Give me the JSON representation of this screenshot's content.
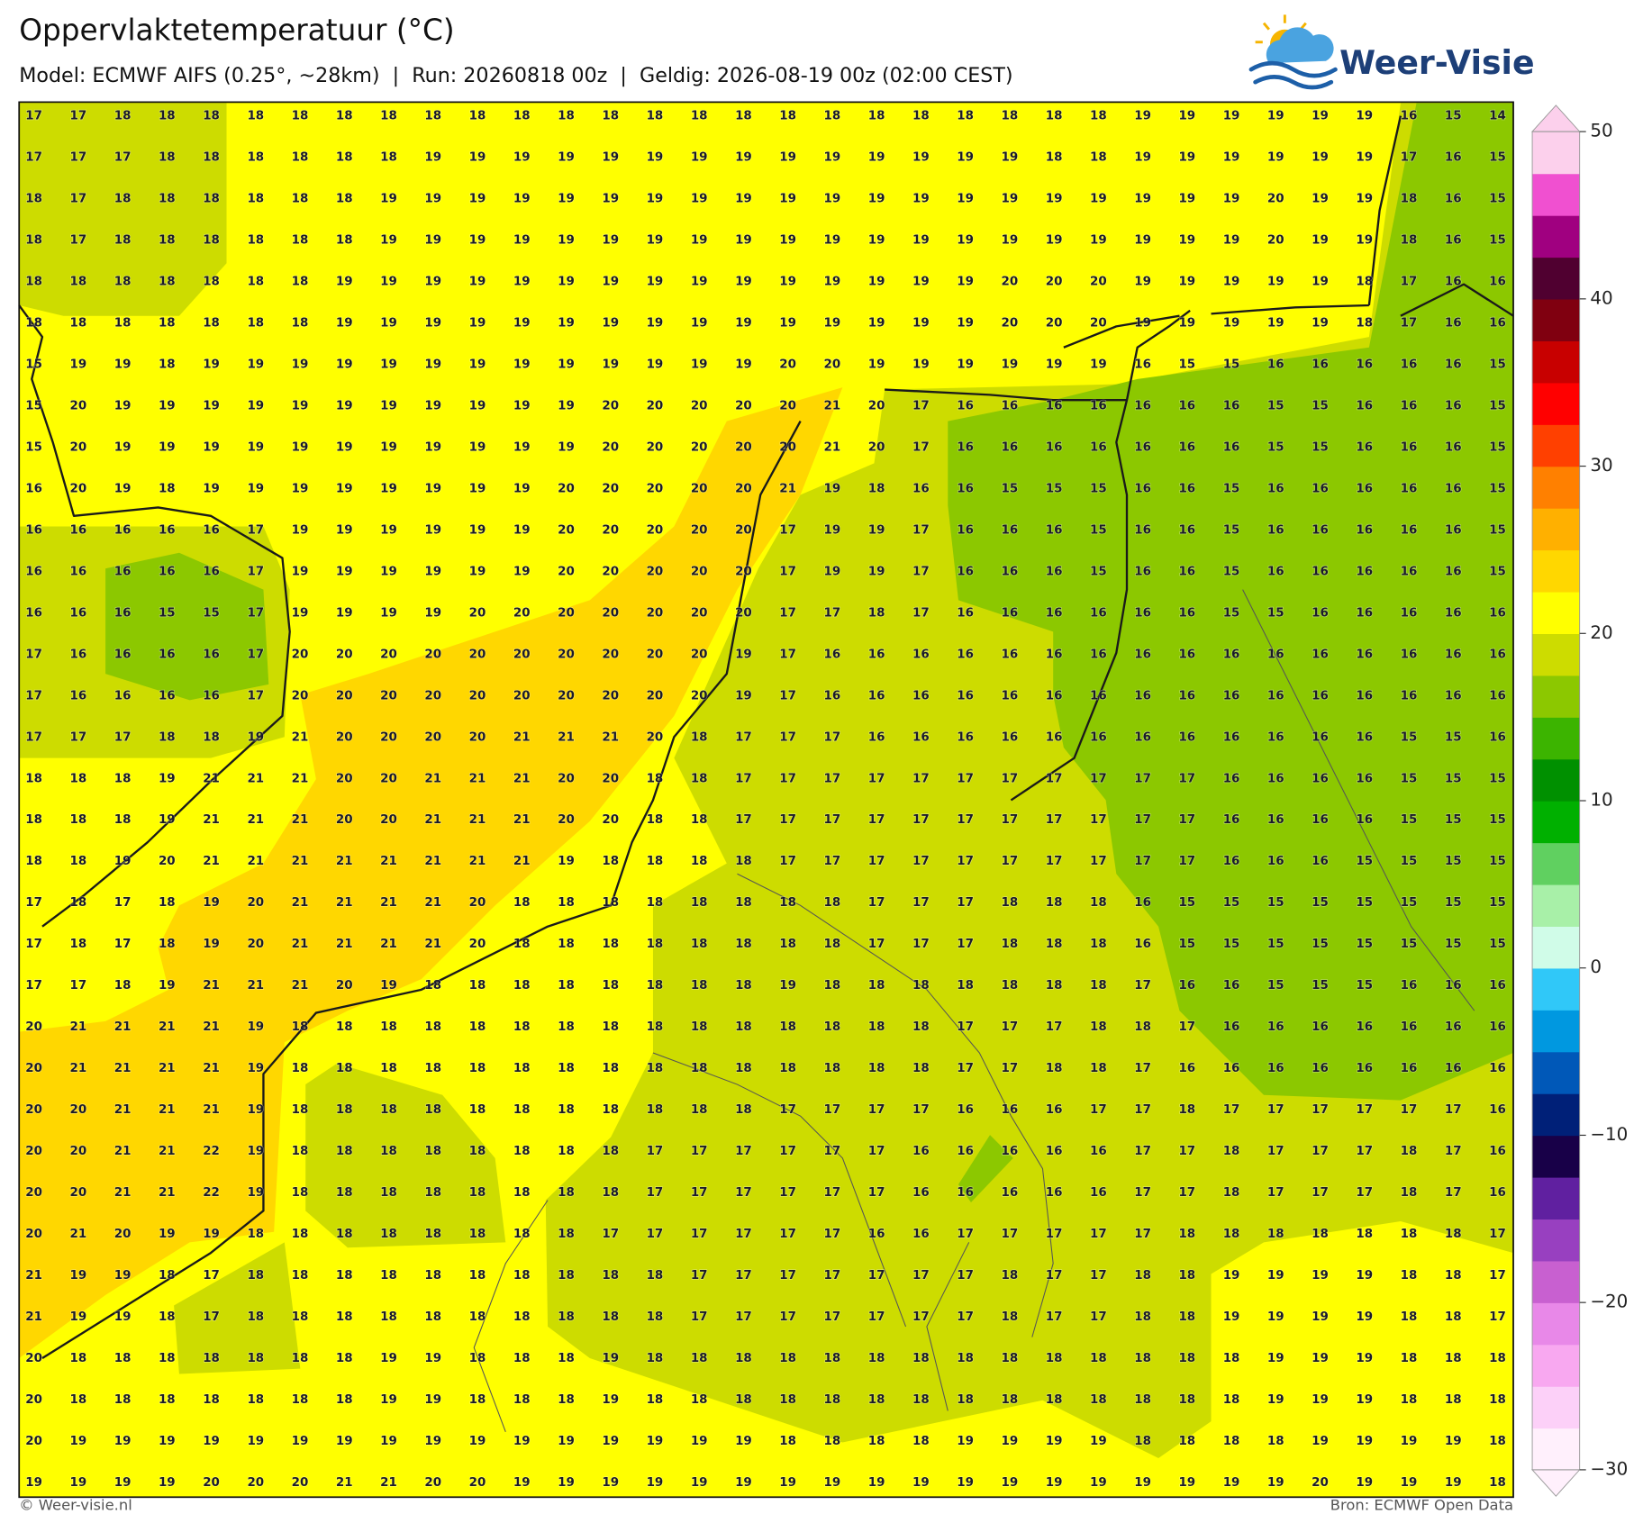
{
  "header": {
    "title": "Oppervlaktetemperatuur (°C)",
    "subtitle": "Model: ECMWF AIFS (0.25°, ~28km)  |  Run: 20260818 00z  |  Geldig: 2026-08-19 00z (02:00 CEST)"
  },
  "logo": {
    "text": "Weer-Visie"
  },
  "grid": {
    "rows": [
      [
        17,
        17,
        18,
        18,
        18,
        18,
        18,
        18,
        18,
        18,
        18,
        18,
        18,
        18,
        18,
        18,
        18,
        18,
        18,
        18,
        18,
        18,
        18,
        18,
        18,
        19,
        19,
        19,
        19,
        19,
        19,
        16,
        15,
        14
      ],
      [
        17,
        17,
        17,
        18,
        18,
        18,
        18,
        18,
        18,
        19,
        19,
        19,
        19,
        19,
        19,
        19,
        19,
        19,
        19,
        19,
        19,
        19,
        19,
        18,
        18,
        19,
        19,
        19,
        19,
        19,
        19,
        17,
        16,
        15
      ],
      [
        18,
        17,
        18,
        18,
        18,
        18,
        18,
        18,
        19,
        19,
        19,
        19,
        19,
        19,
        19,
        19,
        19,
        19,
        19,
        19,
        19,
        19,
        19,
        19,
        19,
        19,
        19,
        19,
        20,
        19,
        19,
        18,
        16,
        15
      ],
      [
        18,
        17,
        18,
        18,
        18,
        18,
        18,
        18,
        19,
        19,
        19,
        19,
        19,
        19,
        19,
        19,
        19,
        19,
        19,
        19,
        19,
        19,
        19,
        19,
        19,
        19,
        19,
        19,
        20,
        19,
        19,
        18,
        16,
        15
      ],
      [
        18,
        18,
        18,
        18,
        18,
        18,
        18,
        19,
        19,
        19,
        19,
        19,
        19,
        19,
        19,
        19,
        19,
        19,
        19,
        19,
        19,
        19,
        20,
        20,
        20,
        19,
        19,
        19,
        19,
        19,
        18,
        17,
        16,
        16
      ],
      [
        18,
        18,
        18,
        18,
        18,
        18,
        18,
        19,
        19,
        19,
        19,
        19,
        19,
        19,
        19,
        19,
        19,
        19,
        19,
        19,
        19,
        19,
        20,
        20,
        20,
        19,
        19,
        19,
        19,
        19,
        18,
        17,
        16,
        16
      ],
      [
        15,
        19,
        19,
        18,
        19,
        19,
        19,
        19,
        19,
        19,
        19,
        19,
        19,
        19,
        19,
        19,
        19,
        20,
        20,
        19,
        19,
        19,
        19,
        19,
        19,
        16,
        15,
        15,
        16,
        16,
        16,
        16,
        16,
        15
      ],
      [
        15,
        20,
        19,
        19,
        19,
        19,
        19,
        19,
        19,
        19,
        19,
        19,
        19,
        20,
        20,
        20,
        20,
        20,
        21,
        20,
        17,
        16,
        16,
        16,
        16,
        16,
        16,
        16,
        15,
        15,
        16,
        16,
        16,
        15
      ],
      [
        15,
        20,
        19,
        19,
        19,
        19,
        19,
        19,
        19,
        19,
        19,
        19,
        19,
        20,
        20,
        20,
        20,
        20,
        21,
        20,
        17,
        16,
        16,
        16,
        16,
        16,
        16,
        16,
        15,
        15,
        16,
        16,
        16,
        15
      ],
      [
        16,
        20,
        19,
        18,
        19,
        19,
        19,
        19,
        19,
        19,
        19,
        19,
        20,
        20,
        20,
        20,
        20,
        21,
        19,
        18,
        16,
        16,
        15,
        15,
        15,
        16,
        16,
        15,
        16,
        16,
        16,
        16,
        16,
        15
      ],
      [
        16,
        16,
        16,
        16,
        16,
        17,
        19,
        19,
        19,
        19,
        19,
        19,
        20,
        20,
        20,
        20,
        20,
        17,
        19,
        19,
        17,
        16,
        16,
        16,
        15,
        16,
        16,
        15,
        16,
        16,
        16,
        16,
        16,
        15
      ],
      [
        16,
        16,
        16,
        16,
        16,
        17,
        19,
        19,
        19,
        19,
        19,
        19,
        20,
        20,
        20,
        20,
        20,
        17,
        19,
        19,
        17,
        16,
        16,
        16,
        15,
        16,
        16,
        15,
        16,
        16,
        16,
        16,
        16,
        15
      ],
      [
        16,
        16,
        16,
        15,
        15,
        17,
        19,
        19,
        19,
        19,
        20,
        20,
        20,
        20,
        20,
        20,
        20,
        17,
        17,
        18,
        17,
        16,
        16,
        16,
        16,
        16,
        16,
        15,
        15,
        16,
        16,
        16,
        16,
        16
      ],
      [
        17,
        16,
        16,
        16,
        16,
        17,
        20,
        20,
        20,
        20,
        20,
        20,
        20,
        20,
        20,
        20,
        19,
        17,
        16,
        16,
        16,
        16,
        16,
        16,
        16,
        16,
        16,
        16,
        16,
        16,
        16,
        16,
        16,
        16
      ],
      [
        17,
        16,
        16,
        16,
        16,
        17,
        20,
        20,
        20,
        20,
        20,
        20,
        20,
        20,
        20,
        20,
        19,
        17,
        16,
        16,
        16,
        16,
        16,
        16,
        16,
        16,
        16,
        16,
        16,
        16,
        16,
        16,
        16,
        16
      ],
      [
        17,
        17,
        17,
        18,
        18,
        19,
        21,
        20,
        20,
        20,
        20,
        21,
        21,
        21,
        20,
        18,
        17,
        17,
        17,
        16,
        16,
        16,
        16,
        16,
        16,
        16,
        16,
        16,
        16,
        16,
        16,
        15,
        15,
        16
      ],
      [
        18,
        18,
        18,
        19,
        21,
        21,
        21,
        20,
        20,
        21,
        21,
        21,
        20,
        20,
        18,
        18,
        17,
        17,
        17,
        17,
        17,
        17,
        17,
        17,
        17,
        17,
        17,
        16,
        16,
        16,
        16,
        15,
        15,
        15
      ],
      [
        18,
        18,
        18,
        19,
        21,
        21,
        21,
        20,
        20,
        21,
        21,
        21,
        20,
        20,
        18,
        18,
        17,
        17,
        17,
        17,
        17,
        17,
        17,
        17,
        17,
        17,
        17,
        16,
        16,
        16,
        16,
        15,
        15,
        15
      ],
      [
        18,
        18,
        19,
        20,
        21,
        21,
        21,
        21,
        21,
        21,
        21,
        21,
        19,
        18,
        18,
        18,
        18,
        17,
        17,
        17,
        17,
        17,
        17,
        17,
        17,
        17,
        17,
        16,
        16,
        16,
        15,
        15,
        15,
        15
      ],
      [
        17,
        18,
        17,
        18,
        19,
        20,
        21,
        21,
        21,
        21,
        20,
        18,
        18,
        18,
        18,
        18,
        18,
        18,
        18,
        17,
        17,
        17,
        18,
        18,
        18,
        16,
        15,
        15,
        15,
        15,
        15,
        15,
        15,
        15
      ],
      [
        17,
        18,
        17,
        18,
        19,
        20,
        21,
        21,
        21,
        21,
        20,
        18,
        18,
        18,
        18,
        18,
        18,
        18,
        18,
        17,
        17,
        17,
        18,
        18,
        18,
        16,
        15,
        15,
        15,
        15,
        15,
        15,
        15,
        15
      ],
      [
        17,
        17,
        18,
        19,
        21,
        21,
        21,
        20,
        19,
        18,
        18,
        18,
        18,
        18,
        18,
        18,
        18,
        19,
        18,
        18,
        18,
        18,
        18,
        18,
        18,
        17,
        16,
        16,
        15,
        15,
        15,
        16,
        16,
        16
      ],
      [
        20,
        21,
        21,
        21,
        21,
        19,
        18,
        18,
        18,
        18,
        18,
        18,
        18,
        18,
        18,
        18,
        18,
        18,
        18,
        18,
        18,
        17,
        17,
        17,
        18,
        18,
        17,
        16,
        16,
        16,
        16,
        16,
        16,
        16
      ],
      [
        20,
        21,
        21,
        21,
        21,
        19,
        18,
        18,
        18,
        18,
        18,
        18,
        18,
        18,
        18,
        18,
        18,
        18,
        18,
        18,
        18,
        17,
        17,
        18,
        18,
        17,
        16,
        16,
        16,
        16,
        16,
        16,
        16,
        16
      ],
      [
        20,
        20,
        21,
        21,
        21,
        19,
        18,
        18,
        18,
        18,
        18,
        18,
        18,
        18,
        18,
        18,
        18,
        17,
        17,
        17,
        17,
        16,
        16,
        16,
        17,
        17,
        18,
        17,
        17,
        17,
        17,
        17,
        17,
        16
      ],
      [
        20,
        20,
        21,
        21,
        22,
        19,
        18,
        18,
        18,
        18,
        18,
        18,
        18,
        18,
        17,
        17,
        17,
        17,
        17,
        17,
        16,
        16,
        16,
        16,
        16,
        17,
        17,
        18,
        17,
        17,
        17,
        18,
        17,
        16
      ],
      [
        20,
        20,
        21,
        21,
        22,
        19,
        18,
        18,
        18,
        18,
        18,
        18,
        18,
        18,
        17,
        17,
        17,
        17,
        17,
        17,
        16,
        16,
        16,
        16,
        16,
        17,
        17,
        18,
        17,
        17,
        17,
        18,
        17,
        16
      ],
      [
        20,
        21,
        20,
        19,
        19,
        18,
        18,
        18,
        18,
        18,
        18,
        18,
        18,
        17,
        17,
        17,
        17,
        17,
        17,
        16,
        16,
        17,
        17,
        17,
        17,
        17,
        18,
        18,
        18,
        18,
        18,
        18,
        18,
        17
      ],
      [
        21,
        19,
        19,
        18,
        17,
        18,
        18,
        18,
        18,
        18,
        18,
        18,
        18,
        18,
        18,
        17,
        17,
        17,
        17,
        17,
        17,
        17,
        18,
        17,
        17,
        18,
        18,
        19,
        19,
        19,
        19,
        18,
        18,
        17
      ],
      [
        21,
        19,
        19,
        18,
        17,
        18,
        18,
        18,
        18,
        18,
        18,
        18,
        18,
        18,
        18,
        17,
        17,
        17,
        17,
        17,
        17,
        17,
        18,
        17,
        17,
        18,
        18,
        19,
        19,
        19,
        19,
        18,
        18,
        17
      ],
      [
        20,
        18,
        18,
        18,
        18,
        18,
        18,
        18,
        19,
        19,
        18,
        18,
        18,
        19,
        18,
        18,
        18,
        18,
        18,
        18,
        18,
        18,
        18,
        18,
        18,
        18,
        18,
        18,
        19,
        19,
        19,
        18,
        18,
        18
      ],
      [
        20,
        18,
        18,
        18,
        18,
        18,
        18,
        18,
        19,
        19,
        18,
        18,
        18,
        19,
        18,
        18,
        18,
        18,
        18,
        18,
        18,
        18,
        18,
        18,
        18,
        18,
        18,
        18,
        19,
        19,
        19,
        18,
        18,
        18
      ],
      [
        20,
        19,
        19,
        19,
        19,
        19,
        19,
        19,
        19,
        19,
        19,
        19,
        19,
        19,
        19,
        19,
        19,
        18,
        18,
        18,
        18,
        19,
        19,
        19,
        19,
        18,
        18,
        18,
        18,
        19,
        19,
        19,
        19,
        18
      ],
      [
        19,
        19,
        19,
        19,
        20,
        20,
        20,
        21,
        21,
        20,
        20,
        19,
        19,
        19,
        19,
        19,
        19,
        19,
        19,
        19,
        19,
        19,
        19,
        19,
        19,
        19,
        19,
        19,
        19,
        20,
        19,
        19,
        19,
        18
      ]
    ]
  },
  "colorbar": {
    "lim": [
      -30,
      50
    ],
    "ticks": [
      50,
      40,
      30,
      20,
      10,
      0,
      {
        "value": -10,
        "label": "−10"
      },
      {
        "value": -20,
        "label": "−20"
      },
      {
        "value": -30,
        "label": "−30"
      }
    ],
    "colors": [
      "#fff0fc",
      "#fcd0f8",
      "#f8a8f0",
      "#e888e8",
      "#c860d0",
      "#9840c0",
      "#6020a0",
      "#180048",
      "#002078",
      "#0058b8",
      "#0098e0",
      "#30c8f8",
      "#d0fce8",
      "#a8f0a8",
      "#60d060",
      "#00b000",
      "#009000",
      "#3cb400",
      "#8cc800",
      "#cddc00",
      "#ffff00",
      "#ffd700",
      "#ffb000",
      "#ff8000",
      "#ff4000",
      "#ff0000",
      "#c80000",
      "#800010",
      "#500030",
      "#a00080",
      "#f050d0",
      "#fcd0ec"
    ]
  },
  "footer": {
    "left": "© Weer-visie.nl",
    "right": "Bron: ECMWF Open Data"
  }
}
